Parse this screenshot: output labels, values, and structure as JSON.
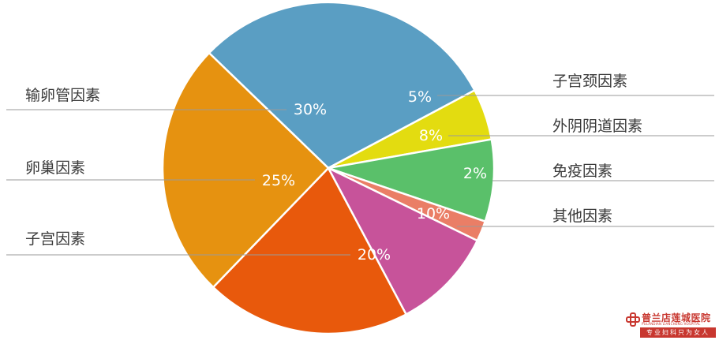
{
  "chart_data": {
    "type": "pie",
    "title": "",
    "slices": [
      {
        "label": "输卵管因素",
        "value": 30,
        "display": "30%",
        "color": "#5a9ec3"
      },
      {
        "label": "子宫颈因素",
        "value": 5,
        "display": "5%",
        "color": "#e3dc10"
      },
      {
        "label": "外阴阴道因素",
        "value": 8,
        "display": "8%",
        "color": "#5ac06a"
      },
      {
        "label": "免疫因素",
        "value": 2,
        "display": "2%",
        "color": "#ea7e66"
      },
      {
        "label": "其他因素",
        "value": 10,
        "display": "10%",
        "color": "#c7539a"
      },
      {
        "label": "子宫因素",
        "value": 20,
        "display": "20%",
        "color": "#e8590c"
      },
      {
        "label": "卵巢因素",
        "value": 25,
        "display": "25%",
        "color": "#e69210"
      }
    ]
  },
  "logo": {
    "name": "普兰店莲城医院",
    "english": "PULANDIAN LIANCHENG HOSPITAL",
    "slogan": "专业妇科只为女人"
  }
}
